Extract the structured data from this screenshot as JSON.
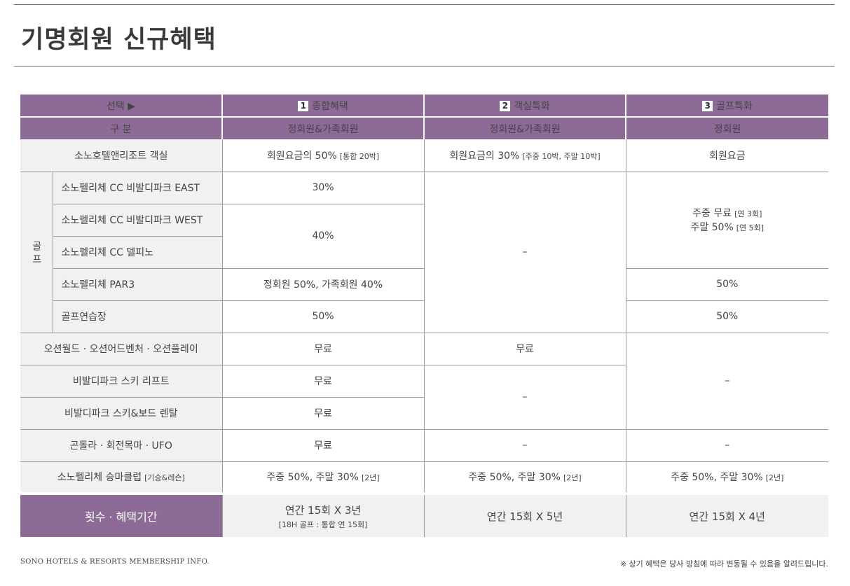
{
  "title": "기명회원 신규혜택",
  "header": {
    "select_label": "선택 ▶",
    "category_label": "구 분",
    "options": [
      {
        "num": "1",
        "name": "종합혜택",
        "members": "정회원&가족회원"
      },
      {
        "num": "2",
        "name": "객실특화",
        "members": "정회원&가족회원"
      },
      {
        "num": "3",
        "name": "골프특화",
        "members": "정회원"
      }
    ]
  },
  "rows": {
    "hotel": {
      "label": "소노호텔앤리조트 객실",
      "c1": "회원요금의 50%",
      "c1_sub": "[통합 20박]",
      "c2": "회원요금의 30%",
      "c2_sub": "[주중 10박, 주말 10박]",
      "c3": "회원요금"
    },
    "golf_group_label": "골 프",
    "golf": [
      {
        "label": "소노펠리체 CC 비발디파크 EAST",
        "c1": "30%"
      },
      {
        "label": "소노펠리체 CC 비발디파크 WEST",
        "c1": "40%"
      },
      {
        "label": "소노펠리체 CC 델피노"
      },
      {
        "label": "소노펠리체 PAR3",
        "c1": "정회원 50%, 가족회원 40%",
        "c3": "50%"
      },
      {
        "label": "골프연습장",
        "c1": "50%",
        "c3": "50%"
      }
    ],
    "golf_c2": "–",
    "golf_c3_line1": "주중 무료",
    "golf_c3_line1_sub": "[연 3회]",
    "golf_c3_line2": "주말 50%",
    "golf_c3_line2_sub": "[연 5회]",
    "ocean": {
      "label": "오션월드 · 오션어드벤처 · 오션플레이",
      "c1": "무료",
      "c2": "무료"
    },
    "ski_lift": {
      "label": "비발디파크 스키 리프트",
      "c1": "무료"
    },
    "ski_rental": {
      "label": "비발디파크 스키&보드 렌탈",
      "c1": "무료"
    },
    "ski_c2": "–",
    "ocean_ski_c3": "–",
    "gondola": {
      "label": "곤돌라 · 회전목마 · UFO",
      "c1": "무료",
      "c2": "–",
      "c3": "–"
    },
    "riding": {
      "label": "소노펠리체 승마클럽",
      "label_sub": "[기승&레슨]",
      "c1": "주중 50%, 주말 30%",
      "c1_sub": "[2년]",
      "c2": "주중 50%, 주말 30%",
      "c2_sub": "[2년]",
      "c3": "주중 50%, 주말 30%",
      "c3_sub": "[2년]"
    },
    "period": {
      "label": "횟수 · 혜택기간",
      "c1": "연간 15회 X 3년",
      "c1_sub": "[18H 골프 : 통합 연 15회]",
      "c2": "연간 15회 X 5년",
      "c3": "연간 15회 X 4년"
    }
  },
  "footer": {
    "left": "SONO HOTELS & RESORTS MEMBERSHIP INFO.",
    "right": "※ 상기 혜택은 당사 방침에 따라 변동될 수 있음을 알려드립니다."
  },
  "colors": {
    "header_purple": "#8c6b96",
    "label_gray": "#f1f1f1"
  }
}
